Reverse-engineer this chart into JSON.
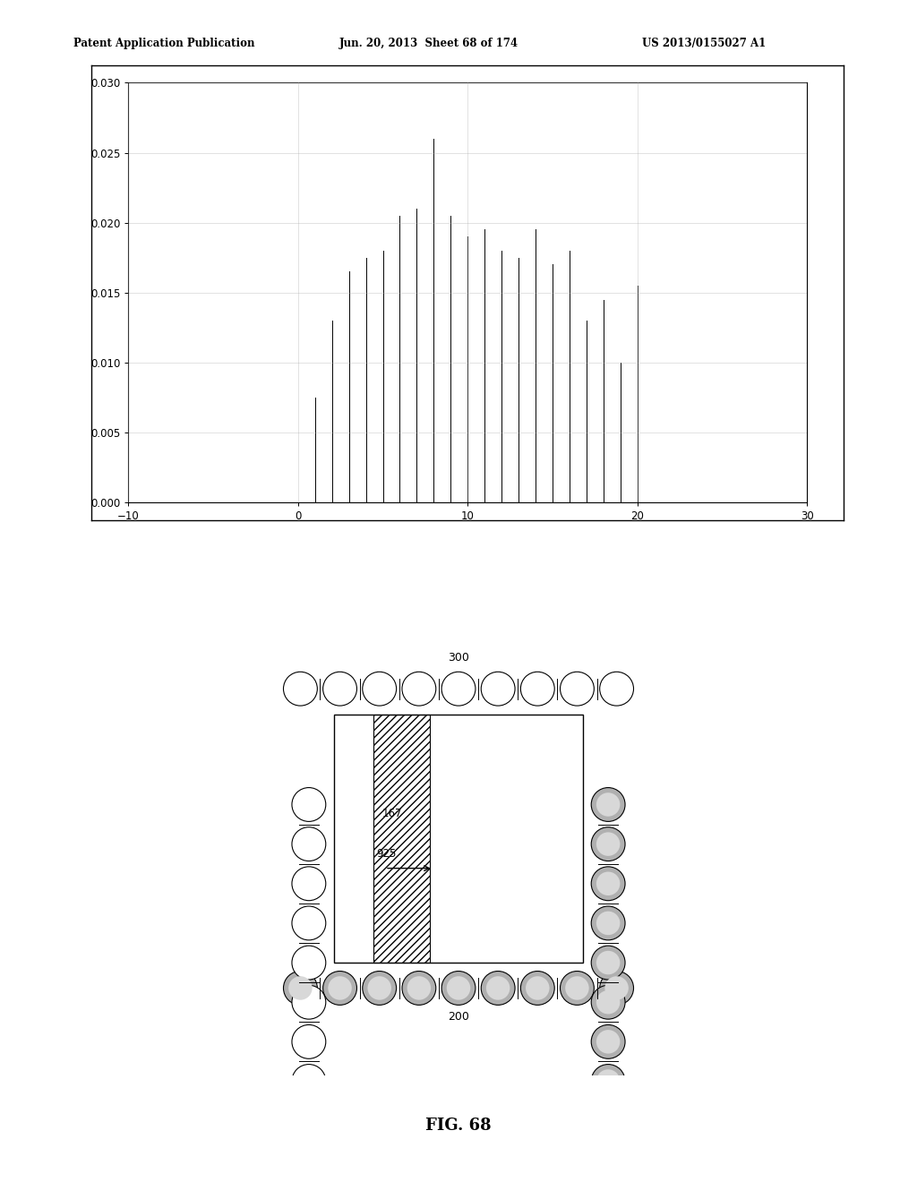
{
  "header_left": "Patent Application Publication",
  "header_mid": "Jun. 20, 2013  Sheet 68 of 174",
  "header_right": "US 2013/0155027 A1",
  "fig_label": "FIG. 68",
  "plot": {
    "xlim": [
      -10,
      30
    ],
    "ylim": [
      0,
      0.03
    ],
    "xticks": [
      -10,
      0,
      10,
      20,
      30
    ],
    "yticks": [
      0,
      0.005,
      0.01,
      0.015,
      0.02,
      0.025,
      0.03
    ],
    "spike_positions": [
      1,
      2,
      3,
      4,
      5,
      6,
      7,
      8,
      9,
      10,
      11,
      12,
      13,
      14,
      15,
      16,
      17,
      18,
      19,
      20
    ],
    "spike_heights": [
      0.0075,
      0.013,
      0.0165,
      0.0175,
      0.018,
      0.0205,
      0.021,
      0.026,
      0.0205,
      0.019,
      0.0195,
      0.018,
      0.0175,
      0.0195,
      0.017,
      0.018,
      0.013,
      0.0145,
      0.01,
      0.0155
    ],
    "line_color": "#000000",
    "bg_color": "#ffffff",
    "grid_color": "#aaaaaa"
  },
  "diagram": {
    "label_300": "300",
    "label_200": "200",
    "label_167": "167",
    "label_925": "925"
  }
}
